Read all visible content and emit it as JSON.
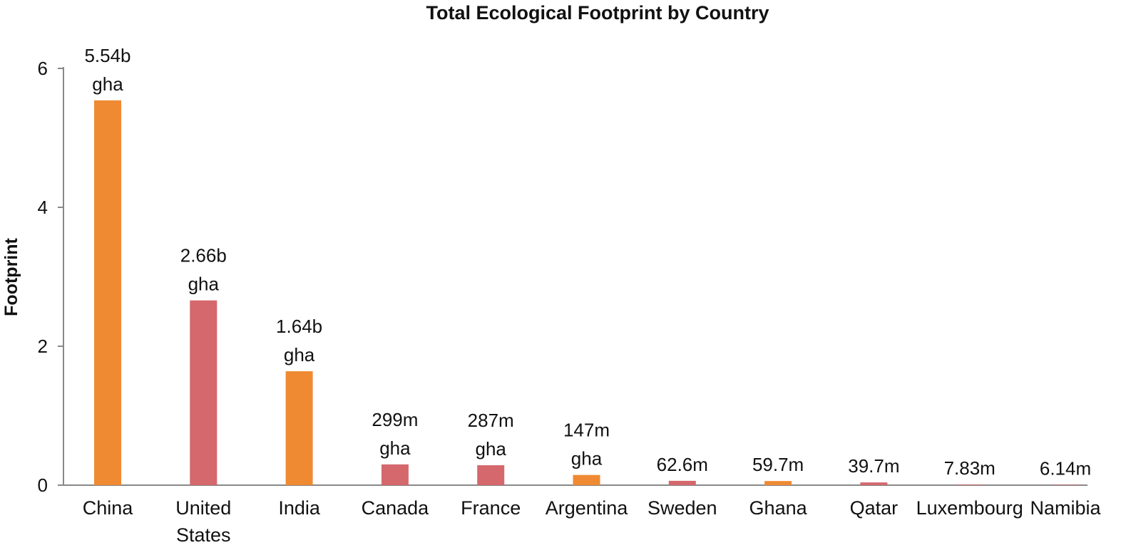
{
  "chart_data": {
    "type": "bar",
    "title": "Total Ecological Footprint by Country",
    "xlabel": "",
    "ylabel": "Footprint",
    "ylim": [
      0,
      6
    ],
    "yticks": [
      "0",
      "2",
      "4",
      "6"
    ],
    "grid": false,
    "categories": [
      [
        "China"
      ],
      [
        "United",
        "States"
      ],
      [
        "India"
      ],
      [
        "Canada"
      ],
      [
        "France"
      ],
      [
        "Argentina"
      ],
      [
        "Sweden"
      ],
      [
        "Ghana"
      ],
      [
        "Qatar"
      ],
      [
        "Luxembourg"
      ],
      [
        "Namibia"
      ]
    ],
    "values": [
      5.54,
      2.66,
      1.64,
      0.299,
      0.287,
      0.147,
      0.0626,
      0.0597,
      0.0397,
      0.00783,
      0.00614
    ],
    "data_labels": [
      [
        "5.54b",
        "gha"
      ],
      [
        "2.66b",
        "gha"
      ],
      [
        "1.64b",
        "gha"
      ],
      [
        "299m",
        "gha"
      ],
      [
        "287m",
        "gha"
      ],
      [
        "147m",
        "gha"
      ],
      [
        "62.6m"
      ],
      [
        "59.7m"
      ],
      [
        "39.7m"
      ],
      [
        "7.83m"
      ],
      [
        "6.14m"
      ]
    ],
    "colors": [
      "#ef8a33",
      "#d4686d",
      "#ef8a33",
      "#d4686d",
      "#d4686d",
      "#ef8a33",
      "#d4686d",
      "#ef8a33",
      "#d4686d",
      "#d4686d",
      "#d4686d"
    ],
    "axis_color": "#888888"
  }
}
